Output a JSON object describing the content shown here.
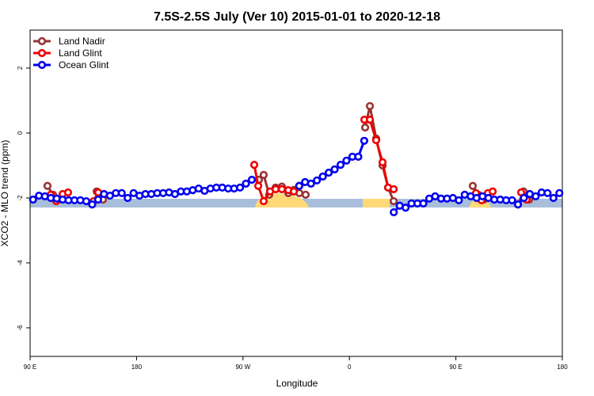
{
  "chart_data": {
    "type": "line",
    "title": "7.5S-2.5S July (Ver 10)   2015-01-01 to 2020-12-18",
    "x_label": "Longitude",
    "y_label": "XCO2 - MLO trend (ppm)",
    "xlim": [
      90,
      540
    ],
    "xticks": [
      {
        "value": 90,
        "label": "90 E"
      },
      180,
      {
        "value": 270,
        "label": "90 W"
      },
      {
        "value": 360,
        "label": "0"
      },
      {
        "value": 450,
        "label": "90 E"
      },
      {
        "value": 540,
        "label": "180"
      }
    ],
    "ylim": [
      -6.88,
      3.17
    ],
    "yticks": [
      -6,
      -4,
      -2,
      0,
      2
    ],
    "legend": "topleft",
    "series": [
      {
        "name": "Land Nadir",
        "color": "#993333",
        "x": [
          104.7,
          109.4,
          114.1,
          null,
          146.3,
          151.6,
          null,
          283.5,
          287.5,
          292.2,
          297.6,
          302.9,
          308.3,
          313.0,
          317.7,
          323.0,
          null,
          373.3,
          377.3,
          382.6,
          388.0,
          392.7,
          397.4,
          null,
          464.3,
          469.0,
          473.7,
          null,
          502.5,
          507.2,
          511.9
        ],
        "values": [
          -1.63,
          -1.9,
          -2.05,
          null,
          -1.8,
          -2.05,
          null,
          -1.44,
          -1.29,
          -1.9,
          -1.68,
          -1.65,
          -1.85,
          -1.75,
          -1.85,
          -1.9,
          null,
          0.17,
          0.83,
          -0.17,
          -1.0,
          -1.68,
          -2.1,
          null,
          -1.63,
          -1.9,
          -2.05,
          null,
          -2.2,
          -1.8,
          -2.05
        ]
      },
      {
        "name": "Land Glint",
        "color": "#ee0000",
        "x": [
          107.4,
          112.1,
          117.5,
          122.1,
          null,
          143.6,
          147.6,
          null,
          279.5,
          282.9,
          287.5,
          292.9,
          297.6,
          302.9,
          308.3,
          313.0,
          317.7,
          null,
          372.6,
          377.3,
          382.6,
          388.0,
          392.7,
          397.4,
          null,
          467.0,
          471.7,
          477.1,
          481.1,
          null,
          505.2,
          509.9
        ],
        "values": [
          -1.9,
          -2.1,
          -1.88,
          -1.83,
          null,
          -2.1,
          -1.83,
          null,
          -0.98,
          -1.63,
          -2.1,
          -1.8,
          -1.73,
          -1.73,
          -1.76,
          -1.8,
          -1.63,
          null,
          0.41,
          0.41,
          -0.22,
          -0.9,
          -1.68,
          -1.73,
          null,
          -1.85,
          -2.07,
          -1.85,
          -1.8,
          null,
          -1.83,
          -2.05
        ]
      },
      {
        "name": "Ocean Glint",
        "color": "#0000ee",
        "x": [
          92.5,
          97.5,
          102.5,
          107.5,
          112.5,
          117.5,
          122.5,
          127.5,
          132.5,
          137.5,
          142.5,
          147.5,
          152.5,
          157.5,
          162.5,
          167.5,
          172.5,
          177.5,
          182.5,
          187.5,
          192.5,
          197.5,
          202.5,
          207.5,
          212.5,
          217.5,
          222.5,
          227.5,
          232.5,
          237.5,
          242.5,
          247.5,
          252.5,
          257.5,
          262.5,
          267.5,
          272.5,
          277.5,
          282.5,
          287.5,
          292.5,
          297.5,
          302.5,
          307.5,
          312.5,
          317.5,
          322.5,
          327.5,
          332.5,
          337.5,
          342.5,
          347.5,
          352.5,
          357.5,
          362.5,
          367.5,
          372.5,
          377.5,
          382.5,
          387.5,
          392.5,
          397.5,
          402.5,
          407.5,
          412.5,
          417.5,
          422.5,
          427.5,
          432.5,
          437.5,
          442.5,
          447.5,
          452.5,
          457.5,
          462.5,
          467.5,
          472.5,
          477.5,
          482.5,
          487.5,
          492.5,
          497.5,
          502.5,
          507.5,
          512.5,
          517.5,
          522.5,
          527.5,
          532.5,
          537.5
        ],
        "values": [
          -2.05,
          -1.93,
          -1.95,
          -2.0,
          -2.02,
          -2.05,
          -2.07,
          -2.07,
          -2.07,
          -2.1,
          -2.2,
          -2.05,
          -1.88,
          -1.93,
          -1.85,
          -1.85,
          -2.0,
          -1.85,
          -1.93,
          -1.88,
          -1.88,
          -1.85,
          -1.85,
          -1.83,
          -1.88,
          -1.8,
          -1.8,
          -1.76,
          -1.71,
          -1.78,
          -1.71,
          -1.68,
          -1.68,
          -1.71,
          -1.71,
          -1.68,
          -1.56,
          -1.44,
          null,
          null,
          null,
          null,
          null,
          null,
          null,
          -1.63,
          -1.51,
          -1.56,
          -1.46,
          -1.34,
          -1.22,
          -1.12,
          -0.98,
          -0.85,
          -0.73,
          -0.73,
          -0.24,
          null,
          null,
          null,
          null,
          -2.44,
          -2.24,
          -2.3,
          -2.17,
          -2.17,
          -2.17,
          -2.02,
          -1.95,
          -2.02,
          -2.02,
          -2.0,
          -2.07,
          -1.9,
          -1.95,
          -2.0,
          -1.95,
          -2.0,
          -2.05,
          -2.05,
          -2.07,
          -2.07,
          -2.2,
          -2.0,
          -1.88,
          -1.95,
          -1.83,
          -1.85,
          -2.0,
          -1.85
        ]
      }
    ]
  }
}
